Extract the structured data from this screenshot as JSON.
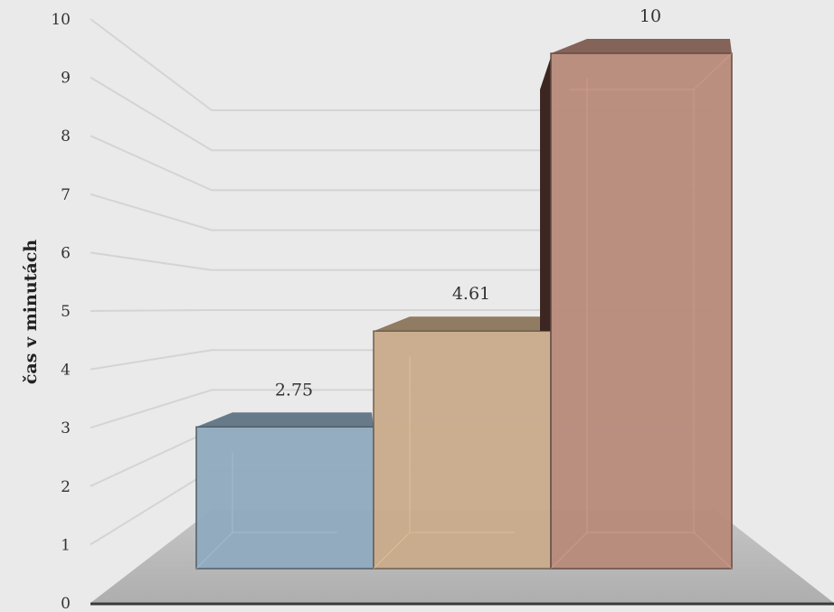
{
  "chart_data": {
    "type": "bar",
    "title": "",
    "xlabel": "",
    "ylabel": "čas v minutách",
    "ylim": [
      0,
      10
    ],
    "yticks": [
      0,
      1,
      2,
      3,
      4,
      5,
      6,
      7,
      8,
      9,
      10
    ],
    "grid": true,
    "legend": "none",
    "categories": [
      "",
      "",
      ""
    ],
    "values": [
      2.75,
      4.61,
      10
    ],
    "data_labels": [
      "2.75",
      "4.61",
      "10"
    ],
    "colors": [
      "#8faabf",
      "#c8ab8a",
      "#b88a7a"
    ],
    "floor_color": "#b9b9b9",
    "gridline_color": "#d4d4d4"
  }
}
